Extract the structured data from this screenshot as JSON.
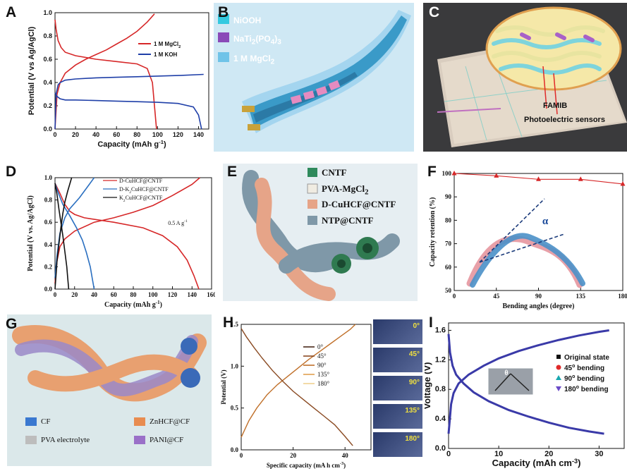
{
  "panels": {
    "A": {
      "letter": "A"
    },
    "B": {
      "letter": "B",
      "legend": [
        "NiOOH",
        "NaTi",
        "1 M MgCl"
      ],
      "legend_sub": {
        "ti": "2",
        "po": "4",
        "po3": "3",
        "mg": "2"
      }
    },
    "C": {
      "letter": "C",
      "labels": [
        "FAMIB",
        "Photoelectric sensors"
      ]
    },
    "D": {
      "letter": "D"
    },
    "E": {
      "letter": "E",
      "legend": [
        "CNTF",
        "PVA-MgCl",
        "D-CuHCF@CNTF",
        "NTP@CNTF"
      ],
      "legend_sub": "2"
    },
    "F": {
      "letter": "F",
      "angle_symbol": "α"
    },
    "G": {
      "letter": "G",
      "legend": [
        "CF",
        "ZnHCF@CF",
        "PVA electrolyte",
        "PANI@CF"
      ]
    },
    "H": {
      "letter": "H",
      "photo_labels": [
        "0°",
        "45°",
        "90°",
        "135°",
        "180°"
      ]
    },
    "I": {
      "letter": "I",
      "inset_symbol": "θ"
    }
  },
  "chart_data": [
    {
      "id": "A",
      "type": "line",
      "title": "",
      "xlabel": "Capacity (mAh g",
      "xlabel_sup": "-1",
      "xlabel_end": ")",
      "ylabel": "Potential (V vs Ag/AgCl)",
      "xlim": [
        0,
        150
      ],
      "ylim": [
        0.0,
        1.0
      ],
      "xticks": [
        "0",
        "20",
        "40",
        "60",
        "80",
        "100",
        "120",
        "140"
      ],
      "yticks": [
        "0.0",
        "0.2",
        "0.4",
        "0.6",
        "0.8",
        "1.0"
      ],
      "legend": [
        {
          "name": "1 M MgCl",
          "sub": "2",
          "color": "#d62728"
        },
        {
          "name": "1 M KOH",
          "color": "#1f3fa8"
        }
      ],
      "series": [
        {
          "name": "MgCl2 charge",
          "color": "#d62728",
          "x": [
            0,
            2,
            5,
            10,
            20,
            30,
            40,
            50,
            60,
            70,
            80,
            90,
            97
          ],
          "y": [
            0.0,
            0.3,
            0.4,
            0.48,
            0.55,
            0.6,
            0.64,
            0.68,
            0.73,
            0.78,
            0.84,
            0.92,
            0.99
          ]
        },
        {
          "name": "MgCl2 discharge",
          "color": "#d62728",
          "x": [
            0,
            1,
            3,
            6,
            10,
            20,
            40,
            60,
            80,
            90,
            95,
            97,
            99
          ],
          "y": [
            0.94,
            0.86,
            0.76,
            0.7,
            0.66,
            0.63,
            0.6,
            0.58,
            0.56,
            0.52,
            0.4,
            0.2,
            0.0
          ]
        },
        {
          "name": "KOH charge",
          "color": "#1f3fa8",
          "x": [
            0,
            1,
            3,
            5,
            10,
            20,
            40,
            60,
            80,
            100,
            120,
            145
          ],
          "y": [
            0.0,
            0.3,
            0.38,
            0.4,
            0.42,
            0.43,
            0.44,
            0.445,
            0.45,
            0.455,
            0.46,
            0.47
          ]
        },
        {
          "name": "KOH discharge",
          "color": "#1f3fa8",
          "x": [
            0,
            2,
            5,
            10,
            20,
            40,
            60,
            80,
            100,
            120,
            135,
            140,
            143
          ],
          "y": [
            0.31,
            0.28,
            0.26,
            0.25,
            0.25,
            0.245,
            0.24,
            0.235,
            0.23,
            0.22,
            0.19,
            0.12,
            0.0
          ]
        }
      ]
    },
    {
      "id": "D",
      "type": "line",
      "xlabel": "Capacity (mAh g",
      "xlabel_sup": "-1",
      "xlabel_end": ")",
      "ylabel": "Potential (V vs. Ag/AgCl)",
      "xlim": [
        0,
        160
      ],
      "ylim": [
        0.0,
        1.0
      ],
      "xticks": [
        "0",
        "20",
        "40",
        "60",
        "80",
        "100",
        "120",
        "140",
        "160"
      ],
      "yticks": [
        "0.0",
        "0.2",
        "0.4",
        "0.6",
        "0.8",
        "1.0"
      ],
      "annotation": "0.5 A g",
      "annotation_sup": "-1",
      "legend": [
        {
          "name": "D-CuHCF@CNTF",
          "color": "#d62728"
        },
        {
          "name": "D-K",
          "sub": "2",
          "name_end": "CuHCF@CNTF",
          "color": "#2a6fc0"
        },
        {
          "name": "K",
          "sub": "2",
          "name_end": "CuHCF@CNTF",
          "color": "#111111"
        }
      ],
      "series": [
        {
          "name": "D charge",
          "color": "#d62728",
          "x": [
            0,
            2,
            5,
            10,
            20,
            40,
            60,
            80,
            100,
            120,
            140,
            148
          ],
          "y": [
            0.05,
            0.25,
            0.38,
            0.45,
            0.52,
            0.6,
            0.64,
            0.69,
            0.75,
            0.84,
            0.94,
            1.0
          ]
        },
        {
          "name": "D discharge",
          "color": "#d62728",
          "x": [
            0,
            5,
            10,
            15,
            20,
            30,
            60,
            90,
            110,
            125,
            135,
            142,
            147
          ],
          "y": [
            0.95,
            0.86,
            0.76,
            0.7,
            0.67,
            0.64,
            0.6,
            0.55,
            0.48,
            0.38,
            0.26,
            0.12,
            0.0
          ]
        },
        {
          "name": "DK charge",
          "color": "#2a6fc0",
          "x": [
            0,
            2,
            5,
            10,
            15,
            25,
            35,
            40
          ],
          "y": [
            0.1,
            0.3,
            0.5,
            0.64,
            0.72,
            0.82,
            0.94,
            1.0
          ]
        },
        {
          "name": "DK discharge",
          "color": "#2a6fc0",
          "x": [
            0,
            3,
            8,
            15,
            22,
            28,
            32,
            36,
            38,
            40
          ],
          "y": [
            0.95,
            0.87,
            0.76,
            0.66,
            0.55,
            0.44,
            0.33,
            0.2,
            0.1,
            0.0
          ]
        },
        {
          "name": "K charge",
          "color": "#111111",
          "x": [
            0,
            1,
            2,
            4,
            6,
            8,
            10,
            13,
            15,
            17
          ],
          "y": [
            0.0,
            0.12,
            0.25,
            0.4,
            0.55,
            0.68,
            0.78,
            0.88,
            0.94,
            1.0
          ]
        },
        {
          "name": "K discharge",
          "color": "#111111",
          "x": [
            0,
            2,
            4,
            6,
            8,
            10,
            12,
            13,
            14
          ],
          "y": [
            0.95,
            0.85,
            0.72,
            0.6,
            0.48,
            0.34,
            0.2,
            0.1,
            0.0
          ]
        }
      ]
    },
    {
      "id": "F",
      "type": "line",
      "xlabel": "Bending angles (degree)",
      "ylabel": "Capacity retention (%)",
      "xlim": [
        0,
        180
      ],
      "ylim": [
        50,
        100
      ],
      "xticks": [
        "0",
        "45",
        "90",
        "135",
        "180"
      ],
      "yticks": [
        "50",
        "60",
        "70",
        "80",
        "90",
        "100"
      ],
      "series": [
        {
          "name": "retention",
          "color": "#d62728",
          "x": [
            0,
            45,
            90,
            135,
            180
          ],
          "y": [
            100,
            99,
            97.5,
            97.5,
            95.5
          ]
        }
      ]
    },
    {
      "id": "H",
      "type": "line",
      "xlabel": "Specific capacity (mA h cm",
      "xlabel_sup": "-3",
      "xlabel_end": ")",
      "ylabel": "Potential (V)",
      "xlim": [
        0,
        50
      ],
      "ylim": [
        0.0,
        1.5
      ],
      "xticks": [
        "0",
        "20",
        "40"
      ],
      "yticks": [
        "0.0",
        "0.5",
        "1.0",
        "1.5"
      ],
      "legend": [
        {
          "name": "0°",
          "color": "#4a2a1a"
        },
        {
          "name": "45°",
          "color": "#8a4a22"
        },
        {
          "name": "90°",
          "color": "#c0702a"
        },
        {
          "name": "135°",
          "color": "#e0a050"
        },
        {
          "name": "180°",
          "color": "#f0d090"
        }
      ],
      "series": [
        {
          "name": "charge",
          "color": "#c0702a",
          "x": [
            0,
            3,
            6,
            10,
            14,
            18,
            22,
            26,
            30,
            34,
            38,
            42,
            44
          ],
          "y": [
            0.15,
            0.35,
            0.5,
            0.66,
            0.78,
            0.88,
            0.98,
            1.08,
            1.17,
            1.26,
            1.35,
            1.44,
            1.5
          ]
        },
        {
          "name": "discharge",
          "color": "#8a4a22",
          "x": [
            0,
            2,
            5,
            8,
            12,
            16,
            20,
            24,
            28,
            32,
            36,
            40,
            43
          ],
          "y": [
            1.45,
            1.35,
            1.22,
            1.1,
            0.95,
            0.82,
            0.7,
            0.6,
            0.5,
            0.4,
            0.3,
            0.16,
            0.05
          ]
        }
      ]
    },
    {
      "id": "I",
      "type": "line",
      "xlabel": "Capacity (mAh cm",
      "xlabel_sup": "-3",
      "xlabel_end": ")",
      "ylabel": "Voltage (V)",
      "xlim": [
        0,
        35
      ],
      "ylim": [
        0.0,
        1.7
      ],
      "xticks": [
        "0",
        "10",
        "20",
        "30"
      ],
      "yticks": [
        "0.0",
        "0.4",
        "0.8",
        "1.2",
        "1.6"
      ],
      "legend": [
        {
          "name": "Original state",
          "color": "#111111",
          "marker": "square"
        },
        {
          "name": "45",
          "sup": "o",
          "name_end": " bending",
          "color": "#e02a2a",
          "marker": "circle"
        },
        {
          "name": "90",
          "sup": "o",
          "name_end": " bending",
          "color": "#19a8b0",
          "marker": "triangle"
        },
        {
          "name": "180",
          "sup": "o",
          "name_end": " bending",
          "color": "#6a4ac8",
          "marker": "tri-down"
        }
      ],
      "series": [
        {
          "name": "charge",
          "color": "#3a3aa8",
          "x": [
            0,
            0.5,
            1,
            2,
            4,
            7,
            10,
            14,
            18,
            22,
            26,
            30,
            32
          ],
          "y": [
            0.2,
            0.6,
            0.75,
            0.88,
            1.0,
            1.12,
            1.22,
            1.32,
            1.4,
            1.47,
            1.53,
            1.58,
            1.6
          ]
        },
        {
          "name": "discharge",
          "color": "#3a3aa8",
          "x": [
            0,
            0.3,
            0.8,
            1.5,
            3,
            5,
            8,
            12,
            16,
            20,
            24,
            28,
            31
          ],
          "y": [
            1.55,
            1.3,
            1.12,
            1.0,
            0.88,
            0.76,
            0.64,
            0.52,
            0.43,
            0.35,
            0.28,
            0.23,
            0.2
          ]
        }
      ]
    }
  ]
}
